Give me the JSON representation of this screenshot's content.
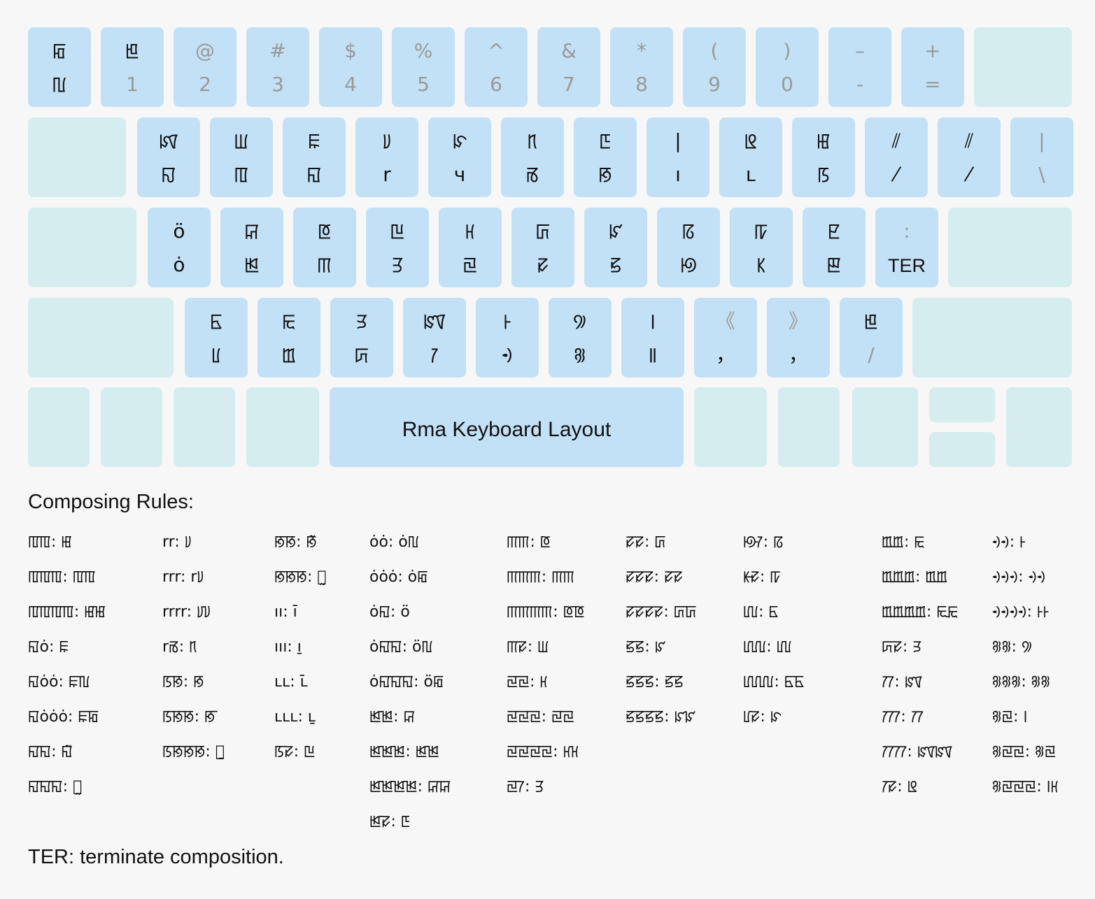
{
  "layout_name": "Rma Keyboard Layout",
  "rows": [
    [
      {
        "sh": "ꡂ",
        "bs": "ꡃ",
        "sg": false,
        "bg": false
      },
      {
        "sh": "ꡁ",
        "bs": "1",
        "sg": false,
        "bg": true
      },
      {
        "sh": "@",
        "bs": "2",
        "sg": true,
        "bg": true
      },
      {
        "sh": "#",
        "bs": "3",
        "sg": true,
        "bg": true
      },
      {
        "sh": "$",
        "bs": "4",
        "sg": true,
        "bg": true
      },
      {
        "sh": "%",
        "bs": "5",
        "sg": true,
        "bg": true
      },
      {
        "sh": "^",
        "bs": "6",
        "sg": true,
        "bg": true
      },
      {
        "sh": "&",
        "bs": "7",
        "sg": true,
        "bg": true
      },
      {
        "sh": "*",
        "bs": "8",
        "sg": true,
        "bg": true
      },
      {
        "sh": "(",
        "bs": "9",
        "sg": true,
        "bg": true
      },
      {
        "sh": ")",
        "bs": "0",
        "sg": true,
        "bg": true
      },
      {
        "sh": "–",
        "bs": "-",
        "sg": true,
        "bg": true
      },
      {
        "sh": "+",
        "bs": "=",
        "sg": true,
        "bg": true
      }
    ],
    [
      {
        "sh": "ꡤ",
        "bs": "ꡍ",
        "sg": false,
        "bg": false
      },
      {
        "sh": "ꡆ",
        "bs": "ꡄ",
        "sg": false,
        "bg": false
      },
      {
        "sh": "ꡀ",
        "bs": "ꡎ",
        "sg": false,
        "bg": false
      },
      {
        "sh": "ꡨ",
        "bs": "r",
        "sg": false,
        "bg": false
      },
      {
        "sh": "ꡯ",
        "bs": "ч",
        "sg": false,
        "bg": false
      },
      {
        "sh": "ꡫ",
        "bs": "ꡏ",
        "sg": false,
        "bg": false
      },
      {
        "sh": "ꡇ",
        "bs": "ꡐ",
        "sg": false,
        "bg": false
      },
      {
        "sh": "|",
        "bs": "ı",
        "sg": false,
        "bg": false
      },
      {
        "sh": "ꡬ",
        "bs": "ʟ",
        "sg": false,
        "bg": false
      },
      {
        "sh": "ꡅ",
        "bs": "ꡑ",
        "sg": false,
        "bg": false
      },
      {
        "sh": "⫽",
        "bs": "⁄",
        "sg": false,
        "bg": false
      },
      {
        "sh": "⫽",
        "bs": "⁄",
        "sg": false,
        "bg": false
      },
      {
        "sh": "|",
        "bs": "\\",
        "sg": true,
        "bg": true
      }
    ],
    [
      {
        "sh": "ö",
        "bs": "ȯ",
        "sg": false,
        "bg": false
      },
      {
        "sh": "ꡒ",
        "bs": "ꡓ",
        "sg": false,
        "bg": false
      },
      {
        "sh": "ꡔ",
        "bs": "ꡕ",
        "sg": false,
        "bg": false
      },
      {
        "sh": "ꡖ",
        "bs": "ꡗ",
        "sg": false,
        "bg": false
      },
      {
        "sh": "ꡘ",
        "bs": "ꡙ",
        "sg": false,
        "bg": false
      },
      {
        "sh": "ꡚ",
        "bs": "ꡛ",
        "sg": false,
        "bg": false
      },
      {
        "sh": "ꡜ",
        "bs": "ꡝ",
        "sg": false,
        "bg": false
      },
      {
        "sh": "ꡞ",
        "bs": "ꡟ",
        "sg": false,
        "bg": false
      },
      {
        "sh": "ꡠ",
        "bs": "ꡡ",
        "sg": false,
        "bg": false
      },
      {
        "sh": "ꡢ",
        "bs": "ꡣ",
        "sg": false,
        "bg": false
      },
      {
        "sh": ":",
        "bs": "TER",
        "sg": true,
        "bg": false
      }
    ],
    [
      {
        "sh": "ꡥ",
        "bs": "ꡦ",
        "sg": false,
        "bg": false
      },
      {
        "sh": "ꡩ",
        "bs": "ꡪ",
        "sg": false,
        "bg": false
      },
      {
        "sh": "ꡭ",
        "bs": "ꡮ",
        "sg": false,
        "bg": false
      },
      {
        "sh": "ꡰ",
        "bs": "ꡱ",
        "sg": false,
        "bg": false
      },
      {
        "sh": "ꡲ",
        "bs": "ꡳ",
        "sg": false,
        "bg": false
      },
      {
        "sh": "꡴",
        "bs": "꡵",
        "sg": false,
        "bg": false
      },
      {
        "sh": "꡶",
        "bs": "꡷",
        "sg": false,
        "bg": false
      },
      {
        "sh": "《",
        "bs": "，",
        "sg": true,
        "bg": false
      },
      {
        "sh": "》",
        "bs": "，",
        "sg": true,
        "bg": false
      },
      {
        "sh": "ꡁ",
        "bs": "/",
        "sg": false,
        "bg": true
      }
    ]
  ],
  "rules_title": "Composing Rules:",
  "rules": [
    [
      "ꡄꡄ: ꡅ",
      "ꡄꡄꡄ: ꡄꡄ",
      "ꡄꡄꡄꡄ: ꡅꡅ",
      "ꡎȯ: ꡀ",
      "ꡎȯȯ: ꡀꡃ",
      "ꡎȯȯȯ: ꡀꡂ",
      "ꡎꡎ: ꡎ̃",
      "ꡎꡎꡎ: ꡎ̰"
    ],
    [
      "rr: ꡨ",
      "rrr: rꡨ",
      "rrrr: ꡨꡨ",
      "rꡏ: ꡫ",
      "ꡑꡐ: ꡐ",
      "ꡑꡐꡐ: ꡐ̄",
      "ꡑꡐꡐꡐ: ꡐ̱"
    ],
    [
      "ꡐꡐ: ꡐ̃",
      "ꡐꡐꡐ: ꡐ̰",
      "ıı: ı̄",
      "ııı: ı̱",
      "ʟʟ: ʟ̄",
      "ʟʟʟ: ʟ̱",
      "ꡑꡛ: ꡖ"
    ],
    [
      "ȯȯ: ȯꡃ",
      "ȯȯȯ: ȯꡂ",
      "ȯꡎ: ö",
      "ȯꡎꡎ: öꡃ",
      "ȯꡎꡎꡎ: öꡂ",
      "ꡓꡓ: ꡒ",
      "ꡓꡓꡓ: ꡓꡓ",
      "ꡓꡓꡓꡓ: ꡒꡒ",
      "ꡓꡛ: ꡇ"
    ],
    [
      "ꡕꡕ: ꡔ",
      "ꡕꡕꡕ: ꡕꡕ",
      "ꡕꡕꡕꡕ: ꡔꡔ",
      "ꡕꡛ: ꡆ",
      "ꡙꡙ: ꡘ",
      "ꡙꡙꡙ: ꡙꡙ",
      "ꡙꡙꡙꡙ: ꡘꡘ",
      "ꡙꡱ: ꡗ"
    ],
    [
      "ꡛꡛ: ꡚ",
      "ꡛꡛꡛ: ꡛꡛ",
      "ꡛꡛꡛꡛ: ꡚꡚ",
      "ꡝꡝ: ꡜ",
      "ꡝꡝꡝ: ꡝꡝ",
      "ꡝꡝꡝꡝ: ꡜꡜ"
    ],
    [
      "ꡟꡱ: ꡞ",
      "ꡡꡛ: ꡠ",
      "ꡦꡦ: ꡥ",
      "ꡦꡦꡦ: ꡦꡦ",
      "ꡦꡦꡦꡦ: ꡥꡥ",
      "ꡦꡛ: ꡯ"
    ],
    [
      "ꡪꡪ: ꡩ",
      "ꡪꡪꡪ: ꡪꡪ",
      "ꡪꡪꡪꡪ: ꡩꡩ",
      "ꡮꡛ: ꡭ",
      "ꡱꡱ: ꡰ",
      "ꡱꡱꡱ: ꡱꡱ",
      "ꡱꡱꡱꡱ: ꡰꡰ",
      "ꡱꡛ: ꡬ"
    ],
    [
      "ꡳꡳ: ꡲ",
      "ꡳꡳꡳ: ꡳꡳ",
      "ꡳꡳꡳꡳ: ꡲꡲ",
      "꡵꡵: ꡴",
      "꡵꡵꡵: ꡵꡵",
      "꡵ꡙ: ꡶",
      "꡵ꡙꡙ: ꡵ꡙ",
      "꡵ꡙꡙꡙ: ꡶ꡘ"
    ]
  ],
  "footer": "TER: terminate composition."
}
